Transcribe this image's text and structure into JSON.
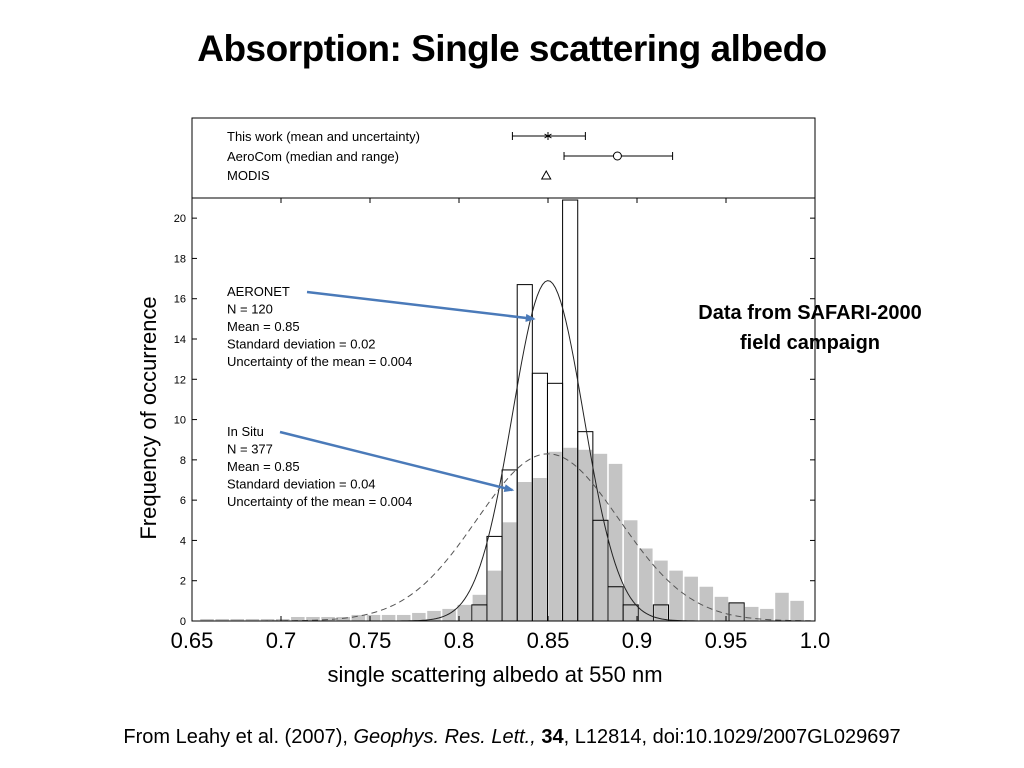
{
  "slide": {
    "title": "Absorption: Single scattering albedo",
    "side_note_line1": "Data from SAFARI-2000",
    "side_note_line2": "field campaign",
    "citation": {
      "prefix": "From Leahy et al. (2007), ",
      "journal": "Geophys. Res. Lett.,",
      "space": " ",
      "volume": "34",
      "rest": ", L12814, doi:10.1029/2007GL029697"
    }
  },
  "chart_data": {
    "type": "bar",
    "xlabel": "single scattering albedo at 550 nm",
    "ylabel": "Frequency of occurrence",
    "xlim": [
      0.65,
      1.0
    ],
    "ylim": [
      0,
      21
    ],
    "x_ticks": [
      0.65,
      0.7,
      0.75,
      0.8,
      0.85,
      0.9,
      0.95,
      1.0
    ],
    "x_tick_labels": [
      "0.65",
      "0.7",
      "0.75",
      "0.8",
      "0.85",
      "0.9",
      "0.95",
      "1.0"
    ],
    "y_ticks": [
      0,
      2,
      4,
      6,
      8,
      10,
      12,
      14,
      16,
      18,
      20
    ],
    "y_tick_labels": [
      "0",
      "2",
      "4",
      "6",
      "8",
      "10",
      "12",
      "14",
      "16",
      "18",
      "20"
    ],
    "bin_width": 0.0085,
    "series": [
      {
        "name": "In Situ",
        "style": "filled",
        "color": "#c4c4c4",
        "bins": [
          [
            0.6542,
            0.1
          ],
          [
            0.6627,
            0.1
          ],
          [
            0.6712,
            0.1
          ],
          [
            0.6797,
            0.1
          ],
          [
            0.6882,
            0.1
          ],
          [
            0.6967,
            0.1
          ],
          [
            0.7052,
            0.2
          ],
          [
            0.7137,
            0.2
          ],
          [
            0.7222,
            0.2
          ],
          [
            0.7307,
            0.2
          ],
          [
            0.7392,
            0.3
          ],
          [
            0.7477,
            0.3
          ],
          [
            0.7562,
            0.3
          ],
          [
            0.7647,
            0.3
          ],
          [
            0.7732,
            0.4
          ],
          [
            0.7817,
            0.5
          ],
          [
            0.7902,
            0.6
          ],
          [
            0.7987,
            0.8
          ],
          [
            0.8072,
            1.3
          ],
          [
            0.8157,
            2.5
          ],
          [
            0.8242,
            4.9
          ],
          [
            0.8327,
            6.9
          ],
          [
            0.8412,
            7.1
          ],
          [
            0.8497,
            8.4
          ],
          [
            0.8582,
            8.6
          ],
          [
            0.8667,
            8.5
          ],
          [
            0.8752,
            8.3
          ],
          [
            0.8837,
            7.8
          ],
          [
            0.8922,
            5.0
          ],
          [
            0.9007,
            3.6
          ],
          [
            0.9092,
            3.0
          ],
          [
            0.9177,
            2.5
          ],
          [
            0.9262,
            2.2
          ],
          [
            0.9347,
            1.7
          ],
          [
            0.9432,
            1.2
          ],
          [
            0.9517,
            0.9
          ],
          [
            0.9602,
            0.7
          ],
          [
            0.9687,
            0.6
          ],
          [
            0.9772,
            1.4
          ],
          [
            0.9857,
            1.0
          ]
        ]
      },
      {
        "name": "AERONET",
        "style": "outline",
        "color": "#000000",
        "bins": [
          [
            0.8072,
            0.8
          ],
          [
            0.8157,
            4.2
          ],
          [
            0.8242,
            7.5
          ],
          [
            0.8327,
            16.7
          ],
          [
            0.8412,
            12.3
          ],
          [
            0.8497,
            11.8
          ],
          [
            0.8582,
            20.9
          ],
          [
            0.8667,
            9.4
          ],
          [
            0.8752,
            5.0
          ],
          [
            0.8837,
            1.7
          ],
          [
            0.8922,
            0.8
          ],
          [
            0.9092,
            0.8
          ],
          [
            0.9517,
            0.9
          ]
        ]
      }
    ],
    "fit_curves": [
      {
        "name": "AERONET",
        "style": "solid",
        "mean": 0.85,
        "std": 0.02,
        "peak": 16.9
      },
      {
        "name": "In Situ",
        "style": "dashed",
        "mean": 0.85,
        "std": 0.04,
        "peak": 8.3
      }
    ],
    "annotations": [
      {
        "target": "AERONET",
        "lines": [
          "AERONET",
          "N = 120",
          "Mean = 0.85",
          "Standard deviation = 0.02",
          "Uncertainty of the mean = 0.004"
        ],
        "arrow_to": [
          0.842,
          15.0
        ]
      },
      {
        "target": "In Situ",
        "lines": [
          "In Situ",
          "N = 377",
          "Mean = 0.85",
          "Standard deviation = 0.04",
          "Uncertainty of the mean = 0.004"
        ],
        "arrow_to": [
          0.83,
          6.5
        ]
      }
    ],
    "top_panel": {
      "rows": [
        {
          "label": "This work (mean and uncertainty)",
          "marker": "asterisk",
          "value": 0.85,
          "range": [
            0.83,
            0.871
          ]
        },
        {
          "label": "AeroCom (median and range)",
          "marker": "circle",
          "value": 0.889,
          "range": [
            0.859,
            0.92
          ]
        },
        {
          "label": "MODIS",
          "marker": "triangle",
          "value": 0.849
        }
      ]
    }
  }
}
